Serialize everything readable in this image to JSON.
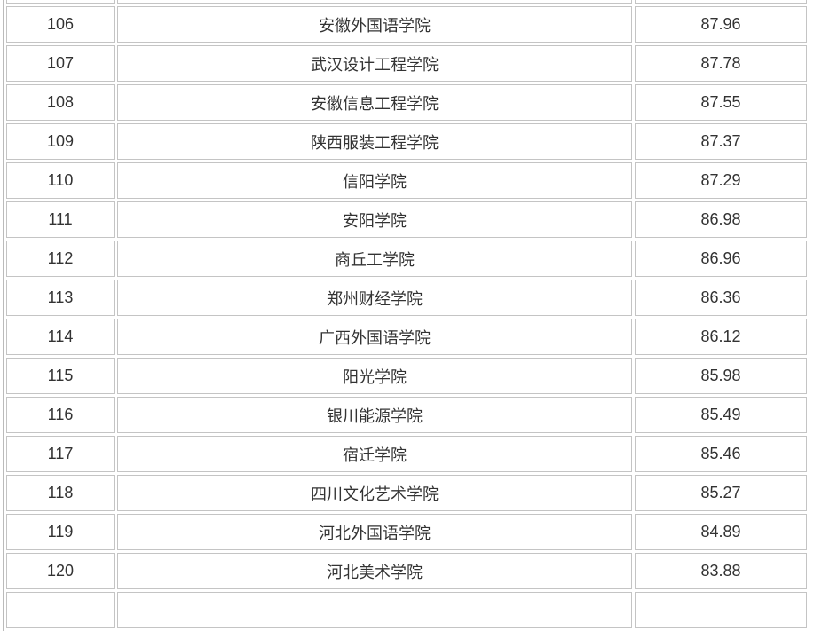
{
  "rows": [
    {
      "rank": "106",
      "name": "安徽外国语学院",
      "score": "87.96"
    },
    {
      "rank": "107",
      "name": "武汉设计工程学院",
      "score": "87.78"
    },
    {
      "rank": "108",
      "name": "安徽信息工程学院",
      "score": "87.55"
    },
    {
      "rank": "109",
      "name": "陕西服装工程学院",
      "score": "87.37"
    },
    {
      "rank": "110",
      "name": "信阳学院",
      "score": "87.29"
    },
    {
      "rank": "111",
      "name": "安阳学院",
      "score": "86.98"
    },
    {
      "rank": "112",
      "name": "商丘工学院",
      "score": "86.96"
    },
    {
      "rank": "113",
      "name": "郑州财经学院",
      "score": "86.36"
    },
    {
      "rank": "114",
      "name": "广西外国语学院",
      "score": "86.12"
    },
    {
      "rank": "115",
      "name": "阳光学院",
      "score": "85.98"
    },
    {
      "rank": "116",
      "name": "银川能源学院",
      "score": "85.49"
    },
    {
      "rank": "117",
      "name": "宿迁学院",
      "score": "85.46"
    },
    {
      "rank": "118",
      "name": "四川文化艺术学院",
      "score": "85.27"
    },
    {
      "rank": "119",
      "name": "河北外国语学院",
      "score": "84.89"
    },
    {
      "rank": "120",
      "name": "河北美术学院",
      "score": "83.88"
    }
  ]
}
